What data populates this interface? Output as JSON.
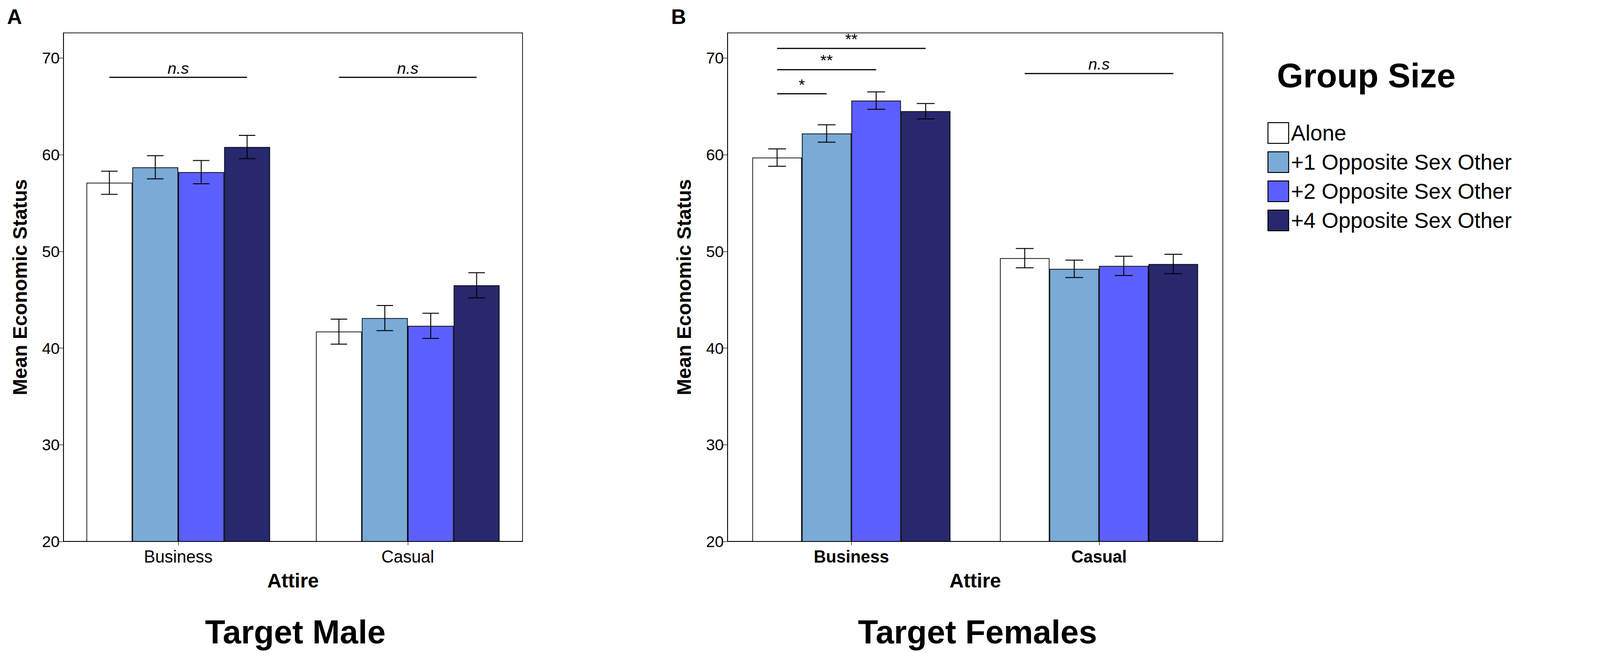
{
  "chart_data": [
    {
      "type": "bar",
      "panel": "A",
      "title": "Target Male",
      "xlabel": "Attire",
      "ylabel": "Mean Economic Status",
      "categories": [
        "Business",
        "Casual"
      ],
      "series": [
        {
          "name": "Alone",
          "color": "#ffffff",
          "values": [
            57.1,
            41.7
          ],
          "errors": [
            1.2,
            1.3
          ]
        },
        {
          "name": "+1 Opposite Sex Other",
          "color": "#7aaad6",
          "values": [
            58.7,
            43.1
          ],
          "errors": [
            1.2,
            1.3
          ]
        },
        {
          "name": "+2 Opposite Sex Other",
          "color": "#5c5fff",
          "values": [
            58.2,
            42.3
          ],
          "errors": [
            1.2,
            1.3
          ]
        },
        {
          "name": "+4 Opposite Sex Other",
          "color": "#28286e",
          "values": [
            60.8,
            46.5
          ],
          "errors": [
            1.2,
            1.3
          ]
        }
      ],
      "annotations": [
        {
          "label": "n.s",
          "y": 68.0,
          "category": "Business",
          "from": "Alone",
          "to": "+4 Opposite Sex Other"
        },
        {
          "label": "n.s",
          "y": 68.0,
          "category": "Casual",
          "from": "Alone",
          "to": "+4 Opposite Sex Other"
        }
      ],
      "ylim": [
        20,
        72.6
      ],
      "yticks": [
        20,
        30,
        40,
        50,
        60,
        70
      ],
      "grid": false
    },
    {
      "type": "bar",
      "panel": "B",
      "title": "Target Females",
      "xlabel": "Attire",
      "ylabel": "Mean Economic Status",
      "categories": [
        "Business",
        "Casual"
      ],
      "series": [
        {
          "name": "Alone",
          "color": "#ffffff",
          "values": [
            59.7,
            49.3
          ],
          "errors": [
            0.9,
            1.0
          ]
        },
        {
          "name": "+1 Opposite Sex Other",
          "color": "#7aaad6",
          "values": [
            62.2,
            48.2
          ],
          "errors": [
            0.9,
            0.9
          ]
        },
        {
          "name": "+2 Opposite Sex Other",
          "color": "#5c5fff",
          "values": [
            65.6,
            48.5
          ],
          "errors": [
            0.9,
            1.0
          ]
        },
        {
          "name": "+4 Opposite Sex Other",
          "color": "#28286e",
          "values": [
            64.5,
            48.7
          ],
          "errors": [
            0.8,
            1.0
          ]
        }
      ],
      "annotations": [
        {
          "label": "*",
          "y": 66.3,
          "category": "Business",
          "from": "Alone",
          "to": "+1 Opposite Sex Other"
        },
        {
          "label": "**",
          "y": 68.8,
          "category": "Business",
          "from": "Alone",
          "to": "+2 Opposite Sex Other"
        },
        {
          "label": "**",
          "y": 71.0,
          "category": "Business",
          "from": "Alone",
          "to": "+4 Opposite Sex Other"
        },
        {
          "label": "n.s",
          "y": 68.4,
          "category": "Casual",
          "from": "Alone",
          "to": "+4 Opposite Sex Other"
        }
      ],
      "ylim": [
        20,
        72.6
      ],
      "yticks": [
        20,
        30,
        40,
        50,
        60,
        70
      ],
      "grid": false,
      "legend": "right",
      "legend_title": "Group Size"
    }
  ]
}
